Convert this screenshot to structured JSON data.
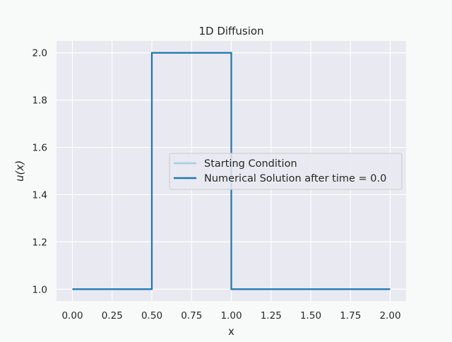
{
  "colors": {
    "figure_bg": "#f8faf9",
    "axes_bg": "#e9e9f1",
    "grid": "#ffffff",
    "starting": "#a6cee3",
    "numerical": "#1f78b4",
    "text": "#262626"
  },
  "chart_data": {
    "type": "line",
    "title": "1D Diffusion",
    "xlabel": "x",
    "ylabel": "u(x)",
    "xlim": [
      -0.1,
      2.1
    ],
    "ylim": [
      0.95,
      2.05
    ],
    "xticks": [
      0.0,
      0.25,
      0.5,
      0.75,
      1.0,
      1.25,
      1.5,
      1.75,
      2.0
    ],
    "xtick_labels": [
      "0.00",
      "0.25",
      "0.50",
      "0.75",
      "1.00",
      "1.25",
      "1.50",
      "1.75",
      "2.00"
    ],
    "yticks": [
      1.0,
      1.2,
      1.4,
      1.6,
      1.8,
      2.0
    ],
    "ytick_labels": [
      "1.0",
      "1.2",
      "1.4",
      "1.6",
      "1.8",
      "2.0"
    ],
    "grid": true,
    "legend_position": "center-right",
    "series": [
      {
        "name": "Starting Condition",
        "color": "#a6cee3",
        "x": [
          0.0,
          0.5,
          0.5,
          1.0,
          1.0,
          2.0
        ],
        "y": [
          1.0,
          1.0,
          2.0,
          2.0,
          1.0,
          1.0
        ]
      },
      {
        "name": "Numerical Solution after time = 0.0",
        "color": "#1f78b4",
        "x": [
          0.0,
          0.5,
          0.5,
          1.0,
          1.0,
          2.0
        ],
        "y": [
          1.0,
          1.0,
          2.0,
          2.0,
          1.0,
          1.0
        ]
      }
    ]
  }
}
